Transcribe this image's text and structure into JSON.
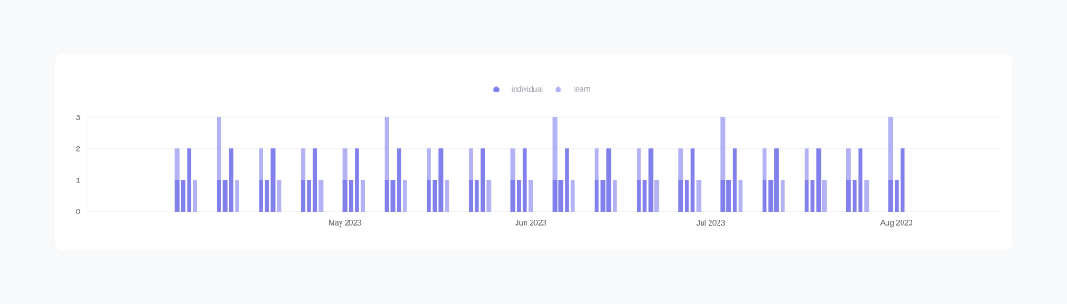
{
  "chart_data": {
    "type": "bar",
    "stacked": true,
    "x": [
      "2023-04-03",
      "2023-04-04",
      "2023-04-05",
      "2023-04-06",
      "2023-04-10",
      "2023-04-11",
      "2023-04-12",
      "2023-04-13",
      "2023-04-17",
      "2023-04-18",
      "2023-04-19",
      "2023-04-20",
      "2023-04-24",
      "2023-04-25",
      "2023-04-26",
      "2023-04-27",
      "2023-05-01",
      "2023-05-02",
      "2023-05-03",
      "2023-05-04",
      "2023-05-08",
      "2023-05-09",
      "2023-05-10",
      "2023-05-11",
      "2023-05-15",
      "2023-05-16",
      "2023-05-17",
      "2023-05-18",
      "2023-05-22",
      "2023-05-23",
      "2023-05-24",
      "2023-05-25",
      "2023-05-29",
      "2023-05-30",
      "2023-05-31",
      "2023-06-01",
      "2023-06-05",
      "2023-06-06",
      "2023-06-07",
      "2023-06-08",
      "2023-06-12",
      "2023-06-13",
      "2023-06-14",
      "2023-06-15",
      "2023-06-19",
      "2023-06-20",
      "2023-06-21",
      "2023-06-22",
      "2023-06-26",
      "2023-06-27",
      "2023-06-28",
      "2023-06-29",
      "2023-07-03",
      "2023-07-04",
      "2023-07-05",
      "2023-07-06",
      "2023-07-10",
      "2023-07-11",
      "2023-07-12",
      "2023-07-13",
      "2023-07-17",
      "2023-07-18",
      "2023-07-19",
      "2023-07-20",
      "2023-07-24",
      "2023-07-25",
      "2023-07-26",
      "2023-07-27",
      "2023-07-31",
      "2023-08-01",
      "2023-08-02"
    ],
    "series": [
      {
        "name": "individual",
        "color": "#8280ec",
        "values": [
          1,
          1,
          2,
          null,
          1,
          1,
          2,
          null,
          1,
          1,
          2,
          null,
          1,
          1,
          2,
          null,
          1,
          1,
          2,
          null,
          1,
          1,
          2,
          null,
          1,
          1,
          2,
          null,
          1,
          1,
          2,
          null,
          1,
          1,
          2,
          null,
          1,
          1,
          2,
          null,
          1,
          1,
          2,
          null,
          1,
          1,
          2,
          null,
          1,
          1,
          2,
          null,
          1,
          1,
          2,
          null,
          1,
          1,
          2,
          null,
          1,
          1,
          2,
          null,
          1,
          1,
          2,
          null,
          1,
          1,
          2
        ]
      },
      {
        "name": "team",
        "color": "#b3b2f5",
        "values": [
          1,
          null,
          null,
          1,
          2,
          null,
          null,
          1,
          1,
          null,
          null,
          1,
          1,
          null,
          null,
          1,
          1,
          null,
          null,
          1,
          2,
          null,
          null,
          1,
          1,
          null,
          null,
          1,
          1,
          null,
          null,
          1,
          1,
          null,
          null,
          1,
          2,
          null,
          null,
          1,
          1,
          null,
          null,
          1,
          1,
          null,
          null,
          1,
          1,
          null,
          null,
          1,
          2,
          null,
          null,
          1,
          1,
          null,
          null,
          1,
          1,
          null,
          null,
          1,
          1,
          null,
          null,
          1,
          2,
          null,
          null
        ]
      }
    ],
    "xlim": [
      "2023-03-19",
      "2023-08-18"
    ],
    "xticks": [
      {
        "value": "2023-05-01",
        "label": "May 2023"
      },
      {
        "value": "2023-06-01",
        "label": "Jun 2023"
      },
      {
        "value": "2023-07-01",
        "label": "Jul 2023"
      },
      {
        "value": "2023-08-01",
        "label": "Aug 2023"
      }
    ],
    "ylim": [
      0,
      3
    ],
    "yticks": [
      0,
      1,
      2,
      3
    ],
    "grid": "y",
    "legend": "top"
  }
}
